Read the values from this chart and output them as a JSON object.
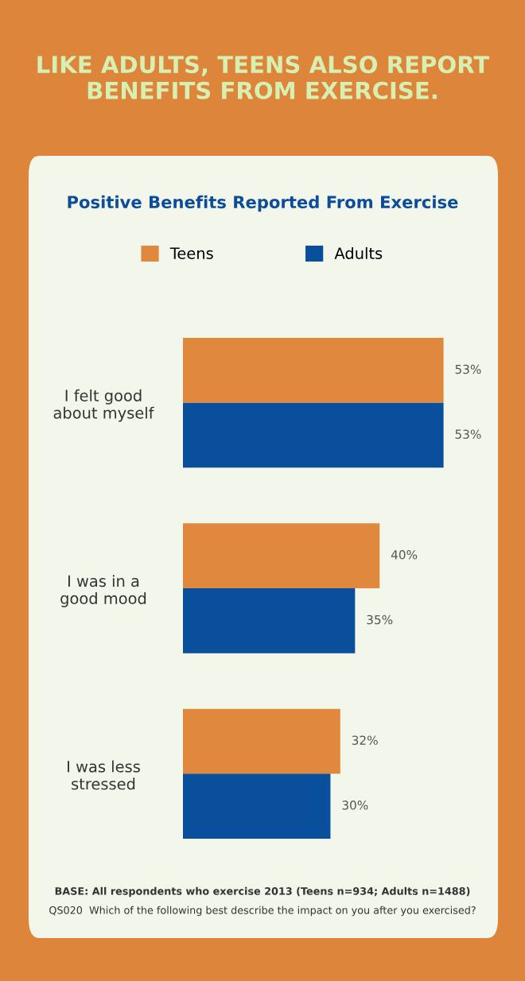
{
  "chart_data": {
    "type": "bar",
    "orientation": "horizontal",
    "title": "LIKE ADULTS, TEENS ALSO REPORT BENEFITS FROM EXERCISE.",
    "subtitle": "Positive Benefits Reported From Exercise",
    "categories": [
      "I felt good\nabout myself",
      "I was in a\ngood mood",
      "I was less\nstressed"
    ],
    "series": [
      {
        "name": "Teens",
        "color": "#e0893e",
        "values": [
          53,
          40,
          32
        ],
        "value_labels": [
          "53%",
          "40%",
          "32%"
        ]
      },
      {
        "name": "Adults",
        "color": "#0a4f9c",
        "values": [
          53,
          35,
          30
        ],
        "value_labels": [
          "53%",
          "35%",
          "30%"
        ]
      }
    ],
    "tick_labels": false,
    "legend": "top",
    "annotations": [
      "BASE: All respondents who exercise 2013 (Teens n=934; Adults n=1488)",
      "QS020  Which of the following best describe the impact on you after you exercised?"
    ]
  }
}
